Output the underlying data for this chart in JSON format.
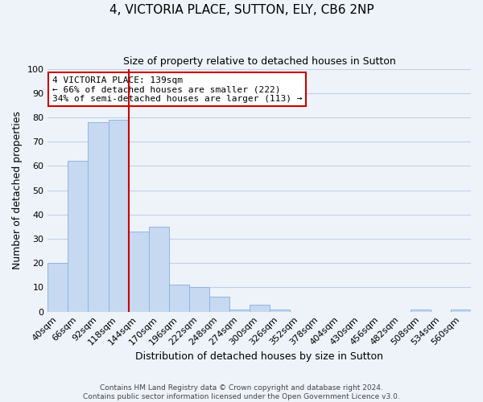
{
  "title": "4, VICTORIA PLACE, SUTTON, ELY, CB6 2NP",
  "subtitle": "Size of property relative to detached houses in Sutton",
  "xlabel": "Distribution of detached houses by size in Sutton",
  "ylabel": "Number of detached properties",
  "footnote1": "Contains HM Land Registry data © Crown copyright and database right 2024.",
  "footnote2": "Contains public sector information licensed under the Open Government Licence v3.0.",
  "bar_labels": [
    "40sqm",
    "66sqm",
    "92sqm",
    "118sqm",
    "144sqm",
    "170sqm",
    "196sqm",
    "222sqm",
    "248sqm",
    "274sqm",
    "300sqm",
    "326sqm",
    "352sqm",
    "378sqm",
    "404sqm",
    "430sqm",
    "456sqm",
    "482sqm",
    "508sqm",
    "534sqm",
    "560sqm"
  ],
  "bar_values": [
    20,
    62,
    78,
    79,
    33,
    35,
    11,
    10,
    6,
    1,
    3,
    1,
    0,
    0,
    0,
    0,
    0,
    0,
    1,
    0,
    1
  ],
  "bar_color": "#c6d9f0",
  "bar_edgecolor": "#8eb4e3",
  "grid_color": "#c0d0e8",
  "bg_color": "#eef3fa",
  "ylim": [
    0,
    100
  ],
  "red_line_index": 4,
  "annotation_line1": "4 VICTORIA PLACE: 139sqm",
  "annotation_line2": "← 66% of detached houses are smaller (222)",
  "annotation_line3": "34% of semi-detached houses are larger (113) →",
  "annotation_box_color": "#ffffff",
  "annotation_border_color": "#cc0000",
  "title_fontsize": 11,
  "subtitle_fontsize": 9,
  "xlabel_fontsize": 9,
  "ylabel_fontsize": 9,
  "tick_fontsize": 8,
  "annotation_fontsize": 8,
  "footnote_fontsize": 6.5
}
